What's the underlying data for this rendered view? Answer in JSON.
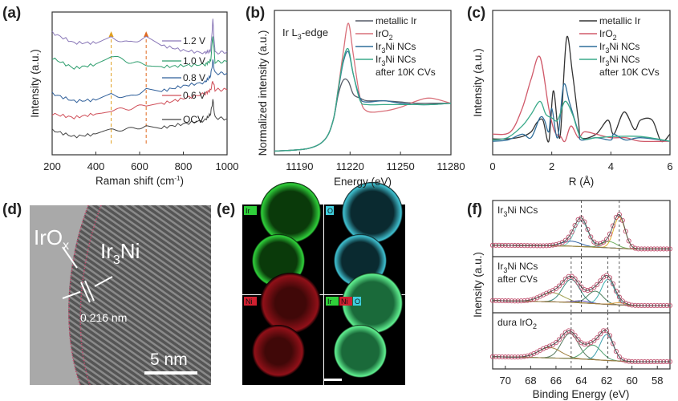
{
  "panels": {
    "a": {
      "label": "(a)"
    },
    "b": {
      "label": "(b)"
    },
    "c": {
      "label": "(c)"
    },
    "d": {
      "label": "(d)",
      "annotations": {
        "shell_pre": "IrO",
        "shell_sub": "x",
        "core_pre": "Ir",
        "core_sub": "3",
        "core_post": "Ni",
        "spacing": "0.216 nm",
        "scale_bar": "5 nm"
      }
    },
    "e": {
      "label": "(e)",
      "maps": [
        {
          "label": "Ir",
          "color": "#2fd03a"
        },
        {
          "label": "O",
          "color": "#3fd0e0"
        },
        {
          "label": "Ni",
          "color": "#d02030"
        },
        {
          "label": "Ir Ni O",
          "color": "#3be07a",
          "badges": [
            "Ir",
            "Ni",
            "O"
          ]
        }
      ]
    },
    "f": {
      "label": "(f)"
    }
  },
  "chart_data": [
    {
      "id": "a",
      "type": "line",
      "xlabel": "Raman shift (cm-1)",
      "xlabel_pre": "Raman shift (cm",
      "xlabel_sup": "-1",
      "xlabel_post": ")",
      "ylabel": "Intensity (a.u.)",
      "xlim": [
        200,
        1000
      ],
      "ylim": [
        0,
        10
      ],
      "xticks": [
        200,
        400,
        600,
        800,
        1000
      ],
      "grid": false,
      "legend": "inline-right",
      "markers": [
        {
          "x": 470,
          "color": "#e0a020"
        },
        {
          "x": 630,
          "color": "#e06a20"
        }
      ],
      "x": [
        200,
        300,
        400,
        470,
        550,
        630,
        700,
        800,
        900,
        925,
        935,
        945,
        1000
      ],
      "series": [
        {
          "name": "1.2 V",
          "color": "#8a78b8",
          "values": [
            9.0,
            8.2,
            8.2,
            8.6,
            8.2,
            8.6,
            8.0,
            7.6,
            7.4,
            7.6,
            10.0,
            7.4,
            7.5
          ]
        },
        {
          "name": "1.0 V",
          "color": "#2e9e6e",
          "values": [
            7.0,
            6.2,
            6.5,
            7.2,
            6.7,
            6.5,
            6.3,
            6.4,
            6.5,
            6.8,
            8.8,
            6.7,
            6.7
          ]
        },
        {
          "name": "0.8 V",
          "color": "#2f5f9a",
          "values": [
            4.2,
            3.6,
            3.7,
            4.1,
            3.9,
            4.5,
            4.4,
            4.8,
            5.1,
            5.6,
            6.8,
            5.8,
            5.8
          ]
        },
        {
          "name": "0.6 V",
          "color": "#d0505a",
          "values": [
            2.6,
            2.3,
            2.6,
            2.9,
            3.0,
            3.3,
            3.4,
            3.8,
            4.2,
            4.5,
            5.2,
            4.5,
            4.5
          ]
        },
        {
          "name": "OCV",
          "color": "#444444",
          "values": [
            1.3,
            0.8,
            1.0,
            1.3,
            1.4,
            1.6,
            1.5,
            1.8,
            2.1,
            2.6,
            3.7,
            2.3,
            2.2
          ]
        }
      ]
    },
    {
      "id": "b",
      "type": "line",
      "annotation_pre": "Ir L",
      "annotation_sub": "3",
      "annotation_post": "-edge",
      "xlabel": "Energy (eV)",
      "ylabel": "Normalized intensity (a.u.)",
      "xlim": [
        11175,
        11280
      ],
      "ylim": [
        0,
        1.05
      ],
      "xticks": [
        11190,
        11220,
        11250,
        11280
      ],
      "grid": false,
      "legend": "top-right",
      "x": [
        11175,
        11195,
        11205,
        11210,
        11213,
        11216,
        11219,
        11222,
        11226,
        11230,
        11240,
        11250,
        11260,
        11268,
        11280
      ],
      "series": [
        {
          "name": "metallic Ir",
          "label": {
            "pre": "metallic Ir",
            "sub": "",
            "post": ""
          },
          "color": "#555a66",
          "values": [
            0.01,
            0.03,
            0.1,
            0.25,
            0.45,
            0.56,
            0.55,
            0.45,
            0.42,
            0.4,
            0.4,
            0.39,
            0.38,
            0.38,
            0.38
          ]
        },
        {
          "name": "IrO2",
          "label": {
            "pre": "IrO",
            "sub": "2",
            "post": ""
          },
          "color": "#d9707a",
          "values": [
            0.01,
            0.03,
            0.1,
            0.25,
            0.5,
            0.78,
            1.0,
            0.75,
            0.42,
            0.32,
            0.32,
            0.35,
            0.4,
            0.42,
            0.38
          ]
        },
        {
          "name": "Ir3Ni NCs",
          "label": {
            "pre": "Ir",
            "sub": "3",
            "post": "Ni NCs"
          },
          "color": "#2f6e9a",
          "values": [
            0.01,
            0.03,
            0.1,
            0.25,
            0.48,
            0.7,
            0.78,
            0.6,
            0.42,
            0.39,
            0.4,
            0.38,
            0.37,
            0.37,
            0.38
          ]
        },
        {
          "name": "Ir3Ni NCs after 10K CVs",
          "label": {
            "pre": "Ir",
            "sub": "3",
            "post": "Ni NCs",
            "line2": "after 10K CVs"
          },
          "color": "#3aaa8a",
          "values": [
            0.01,
            0.03,
            0.1,
            0.25,
            0.49,
            0.72,
            0.8,
            0.6,
            0.4,
            0.37,
            0.37,
            0.37,
            0.37,
            0.37,
            0.38
          ]
        }
      ]
    },
    {
      "id": "c",
      "type": "line",
      "xlabel": "R (Å)",
      "ylabel": "Intensity (a.u.)",
      "xlim": [
        0,
        6
      ],
      "ylim": [
        0,
        1
      ],
      "xticks": [
        0,
        2,
        4,
        6
      ],
      "grid": false,
      "legend": "top-right",
      "series": [
        {
          "name": "metallic Ir",
          "label": {
            "pre": "metallic Ir",
            "sub": "",
            "post": ""
          },
          "color": "#333333",
          "x": [
            0,
            0.5,
            1,
            1.3,
            1.5,
            1.7,
            1.9,
            2.05,
            2.2,
            2.3,
            2.5,
            2.7,
            2.9,
            3.0,
            3.5,
            3.9,
            4.1,
            4.45,
            4.8,
            5.0,
            5.4,
            5.7,
            6.0
          ],
          "values": [
            0.04,
            0.04,
            0.06,
            0.1,
            0.18,
            0.2,
            0.02,
            0.45,
            0.15,
            0.1,
            0.9,
            0.6,
            0.2,
            0.05,
            0.08,
            0.2,
            0.08,
            0.27,
            0.12,
            0.2,
            0.2,
            0.02,
            0.08
          ]
        },
        {
          "name": "IrO2",
          "label": {
            "pre": "IrO",
            "sub": "2",
            "post": ""
          },
          "color": "#d05a6a",
          "x": [
            0,
            0.6,
            1.0,
            1.3,
            1.6,
            1.9,
            2.1,
            2.3,
            2.45,
            2.65,
            2.9,
            3.1,
            3.5,
            4.0,
            4.5,
            5.0,
            6.0
          ],
          "values": [
            0.08,
            0.1,
            0.3,
            0.55,
            0.74,
            0.3,
            0.1,
            0.06,
            0.02,
            0.15,
            0.05,
            0.1,
            0.08,
            0.05,
            0.05,
            0.02,
            0.02
          ]
        },
        {
          "name": "Ir3Ni NCs",
          "label": {
            "pre": "Ir",
            "sub": "3",
            "post": "Ni NCs"
          },
          "color": "#2f6e9a",
          "x": [
            0,
            0.5,
            1,
            1.3,
            1.6,
            1.75,
            1.9,
            2.0,
            2.2,
            2.4,
            2.6,
            2.9,
            3.0,
            3.5,
            4.0,
            4.1,
            4.5,
            5.0,
            6.0
          ],
          "values": [
            0.02,
            0.03,
            0.08,
            0.05,
            0.22,
            0.2,
            0.1,
            0.3,
            0.05,
            0.5,
            0.35,
            0.1,
            0.03,
            0.05,
            0.03,
            0.08,
            0.03,
            0.05,
            0.02
          ]
        },
        {
          "name": "Ir3Ni NCs after 10K CVs",
          "label": {
            "pre": "Ir",
            "sub": "3",
            "post": "Ni NCs",
            "line2": "after 10K CVs"
          },
          "color": "#3aaa8a",
          "x": [
            0,
            0.5,
            1,
            1.3,
            1.6,
            1.8,
            2.0,
            2.2,
            2.45,
            2.7,
            3.0,
            3.5,
            4.1,
            5.0,
            6.0
          ],
          "values": [
            0.03,
            0.05,
            0.15,
            0.25,
            0.36,
            0.25,
            0.22,
            0.2,
            0.36,
            0.25,
            0.05,
            0.05,
            0.06,
            0.06,
            0.02
          ]
        }
      ]
    },
    {
      "id": "f",
      "type": "line",
      "xlabel": "Binding Energy (eV)",
      "ylabel": "Inensity (a.u.)",
      "xlim": [
        71,
        57
      ],
      "xticks": [
        70,
        68,
        66,
        64,
        62,
        60,
        58
      ],
      "ylim": [
        0,
        1
      ],
      "grid": false,
      "subplots": [
        {
          "label": {
            "pre": "Ir",
            "sub": "3",
            "post": "Ni NCs"
          },
          "reference_lines": [
            64.0,
            61.0
          ],
          "background": {
            "x": [
              71,
              65,
              62,
              60,
              57
            ],
            "y": [
              0.12,
              0.1,
              0.06,
              0.03,
              0.03
            ]
          },
          "components": [
            {
              "center": 64.0,
              "height": 0.62,
              "width": 0.7,
              "color": "#6fc7c0"
            },
            {
              "center": 61.0,
              "height": 0.75,
              "width": 0.6,
              "color": "#e0b030"
            },
            {
              "center": 64.8,
              "height": 0.12,
              "width": 1.0,
              "color": "#3060a0"
            },
            {
              "center": 61.8,
              "height": 0.15,
              "width": 0.8,
              "color": "#70b060"
            }
          ]
        },
        {
          "label": {
            "pre": "Ir",
            "sub": "3",
            "post": "Ni NCs",
            "line2": "after CVs"
          },
          "reference_lines": [
            64.8,
            64.0,
            61.9,
            61.0
          ],
          "background": {
            "x": [
              71,
              65,
              62,
              60,
              57
            ],
            "y": [
              0.14,
              0.1,
              0.05,
              0.02,
              0.02
            ]
          },
          "components": [
            {
              "center": 64.8,
              "height": 0.55,
              "width": 0.9,
              "color": "#3a8a80"
            },
            {
              "center": 61.9,
              "height": 0.6,
              "width": 0.7,
              "color": "#40b0b0"
            },
            {
              "center": 66.3,
              "height": 0.22,
              "width": 1.2,
              "color": "#a0a050"
            },
            {
              "center": 62.9,
              "height": 0.3,
              "width": 0.8,
              "color": "#508060"
            },
            {
              "center": 64.0,
              "height": 0.05,
              "width": 0.8,
              "color": "#6050c0"
            },
            {
              "center": 61.0,
              "height": 0.05,
              "width": 0.7,
              "color": "#e0a040"
            }
          ]
        },
        {
          "label": {
            "pre": "dura IrO",
            "sub": "2",
            "post": ""
          },
          "reference_lines": [
            64.8,
            61.9
          ],
          "background": {
            "x": [
              71,
              65,
              62,
              60,
              57
            ],
            "y": [
              0.14,
              0.1,
              0.05,
              0.02,
              0.02
            ]
          },
          "components": [
            {
              "center": 64.9,
              "height": 0.6,
              "width": 0.9,
              "color": "#5a7a60"
            },
            {
              "center": 62.0,
              "height": 0.62,
              "width": 0.7,
              "color": "#40a0b0"
            },
            {
              "center": 66.5,
              "height": 0.25,
              "width": 1.2,
              "color": "#a08040"
            },
            {
              "center": 63.1,
              "height": 0.35,
              "width": 0.9,
              "color": "#50a070"
            }
          ]
        }
      ]
    }
  ]
}
